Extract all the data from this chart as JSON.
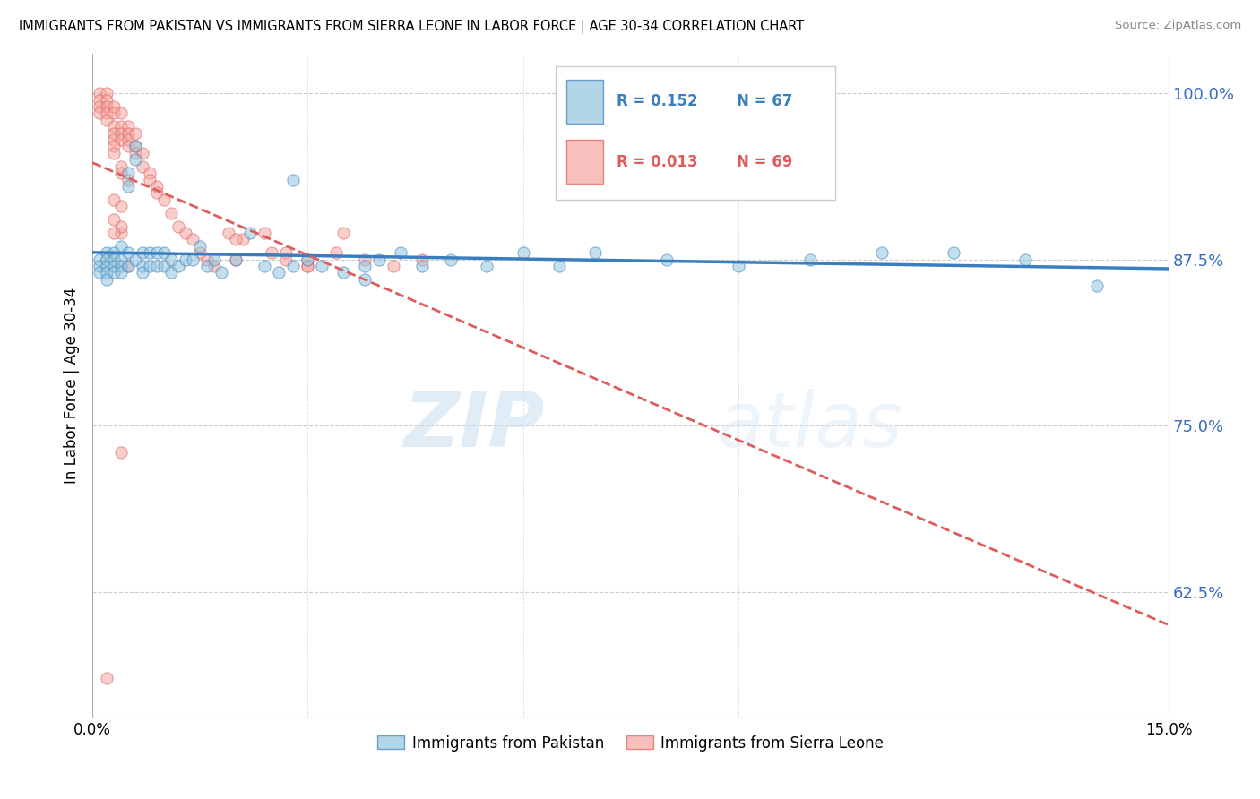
{
  "title": "IMMIGRANTS FROM PAKISTAN VS IMMIGRANTS FROM SIERRA LEONE IN LABOR FORCE | AGE 30-34 CORRELATION CHART",
  "source": "Source: ZipAtlas.com",
  "ylabel": "In Labor Force | Age 30-34",
  "ytick_labels": [
    "100.0%",
    "87.5%",
    "75.0%",
    "62.5%"
  ],
  "ytick_values": [
    1.0,
    0.875,
    0.75,
    0.625
  ],
  "xlim": [
    0.0,
    0.15
  ],
  "ylim": [
    0.53,
    1.03
  ],
  "legend_blue_r": "R = 0.152",
  "legend_blue_n": "N = 67",
  "legend_pink_r": "R = 0.013",
  "legend_pink_n": "N = 69",
  "legend_label_blue": "Immigrants from Pakistan",
  "legend_label_pink": "Immigrants from Sierra Leone",
  "blue_color": "#92c5de",
  "pink_color": "#f4a6a0",
  "trendline_blue_color": "#3a7ebf",
  "trendline_pink_color": "#e05c5c",
  "watermark_zip": "ZIP",
  "watermark_atlas": "atlas",
  "blue_scatter_x": [
    0.001,
    0.001,
    0.001,
    0.002,
    0.002,
    0.002,
    0.002,
    0.002,
    0.003,
    0.003,
    0.003,
    0.003,
    0.004,
    0.004,
    0.004,
    0.004,
    0.005,
    0.005,
    0.005,
    0.005,
    0.006,
    0.006,
    0.006,
    0.007,
    0.007,
    0.007,
    0.008,
    0.008,
    0.009,
    0.009,
    0.01,
    0.01,
    0.011,
    0.011,
    0.012,
    0.013,
    0.014,
    0.015,
    0.016,
    0.017,
    0.018,
    0.02,
    0.022,
    0.024,
    0.026,
    0.028,
    0.03,
    0.032,
    0.035,
    0.038,
    0.04,
    0.043,
    0.046,
    0.05,
    0.055,
    0.06,
    0.065,
    0.07,
    0.08,
    0.09,
    0.1,
    0.11,
    0.12,
    0.13,
    0.14,
    0.028,
    0.038
  ],
  "blue_scatter_y": [
    0.875,
    0.87,
    0.865,
    0.88,
    0.875,
    0.87,
    0.865,
    0.86,
    0.88,
    0.875,
    0.87,
    0.865,
    0.885,
    0.875,
    0.87,
    0.865,
    0.94,
    0.93,
    0.88,
    0.87,
    0.96,
    0.95,
    0.875,
    0.88,
    0.87,
    0.865,
    0.88,
    0.87,
    0.88,
    0.87,
    0.88,
    0.87,
    0.875,
    0.865,
    0.87,
    0.875,
    0.875,
    0.885,
    0.87,
    0.875,
    0.865,
    0.875,
    0.895,
    0.87,
    0.865,
    0.87,
    0.875,
    0.87,
    0.865,
    0.87,
    0.875,
    0.88,
    0.87,
    0.875,
    0.87,
    0.88,
    0.87,
    0.88,
    0.875,
    0.87,
    0.875,
    0.88,
    0.88,
    0.875,
    0.855,
    0.935,
    0.86
  ],
  "pink_scatter_x": [
    0.001,
    0.001,
    0.001,
    0.001,
    0.002,
    0.002,
    0.002,
    0.002,
    0.002,
    0.003,
    0.003,
    0.003,
    0.003,
    0.003,
    0.004,
    0.004,
    0.004,
    0.004,
    0.005,
    0.005,
    0.005,
    0.005,
    0.006,
    0.006,
    0.006,
    0.007,
    0.007,
    0.008,
    0.008,
    0.009,
    0.009,
    0.01,
    0.011,
    0.012,
    0.013,
    0.014,
    0.015,
    0.016,
    0.017,
    0.019,
    0.021,
    0.024,
    0.027,
    0.03,
    0.034,
    0.038,
    0.042,
    0.046,
    0.004,
    0.005,
    0.003,
    0.003,
    0.004,
    0.004,
    0.005,
    0.003,
    0.004,
    0.003,
    0.004,
    0.003,
    0.027,
    0.03,
    0.02,
    0.025,
    0.02,
    0.035,
    0.03,
    0.004,
    0.002
  ],
  "pink_scatter_y": [
    1.0,
    0.995,
    0.99,
    0.985,
    1.0,
    0.995,
    0.99,
    0.985,
    0.98,
    0.99,
    0.985,
    0.975,
    0.97,
    0.965,
    0.985,
    0.975,
    0.97,
    0.965,
    0.975,
    0.97,
    0.965,
    0.96,
    0.97,
    0.96,
    0.955,
    0.955,
    0.945,
    0.94,
    0.935,
    0.93,
    0.925,
    0.92,
    0.91,
    0.9,
    0.895,
    0.89,
    0.88,
    0.875,
    0.87,
    0.895,
    0.89,
    0.895,
    0.88,
    0.875,
    0.88,
    0.875,
    0.87,
    0.875,
    0.895,
    0.87,
    0.96,
    0.955,
    0.945,
    0.94,
    0.935,
    0.92,
    0.915,
    0.905,
    0.9,
    0.895,
    0.875,
    0.87,
    0.875,
    0.88,
    0.89,
    0.895,
    0.87,
    0.73,
    0.56
  ]
}
